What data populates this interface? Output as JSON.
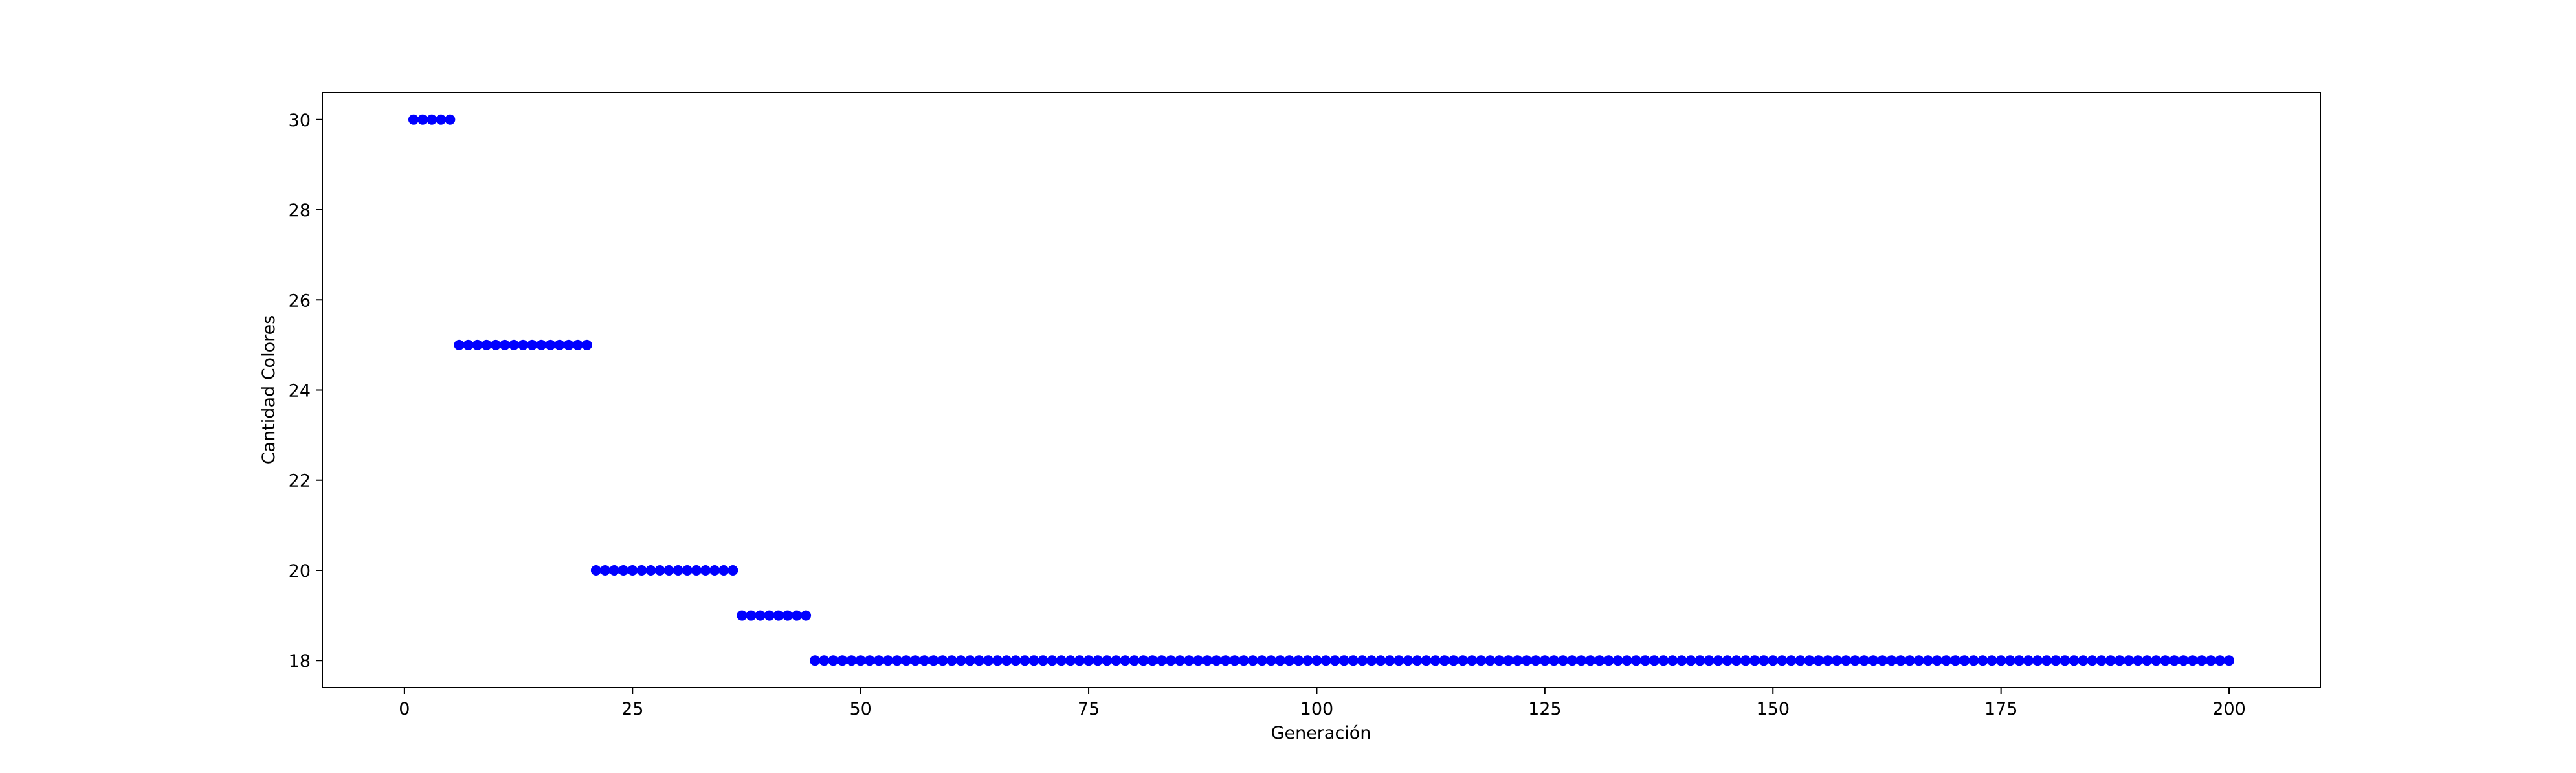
{
  "chart_data": {
    "type": "scatter",
    "title": "",
    "xlabel": "Generación",
    "ylabel": "Cantidad Colores",
    "xlim": [
      -9,
      210
    ],
    "ylim": [
      17.4,
      30.6
    ],
    "xticks": [
      0,
      25,
      50,
      75,
      100,
      125,
      150,
      175,
      200
    ],
    "yticks": [
      18,
      20,
      22,
      24,
      26,
      28,
      30
    ],
    "grid": false,
    "legend": "none",
    "marker_color": "#0000ff",
    "segments": [
      {
        "x_start": 1,
        "x_end": 5,
        "y": 30
      },
      {
        "x_start": 6,
        "x_end": 20,
        "y": 25
      },
      {
        "x_start": 21,
        "x_end": 36,
        "y": 20
      },
      {
        "x_start": 37,
        "x_end": 44,
        "y": 19
      },
      {
        "x_start": 45,
        "x_end": 200,
        "y": 18
      }
    ]
  }
}
